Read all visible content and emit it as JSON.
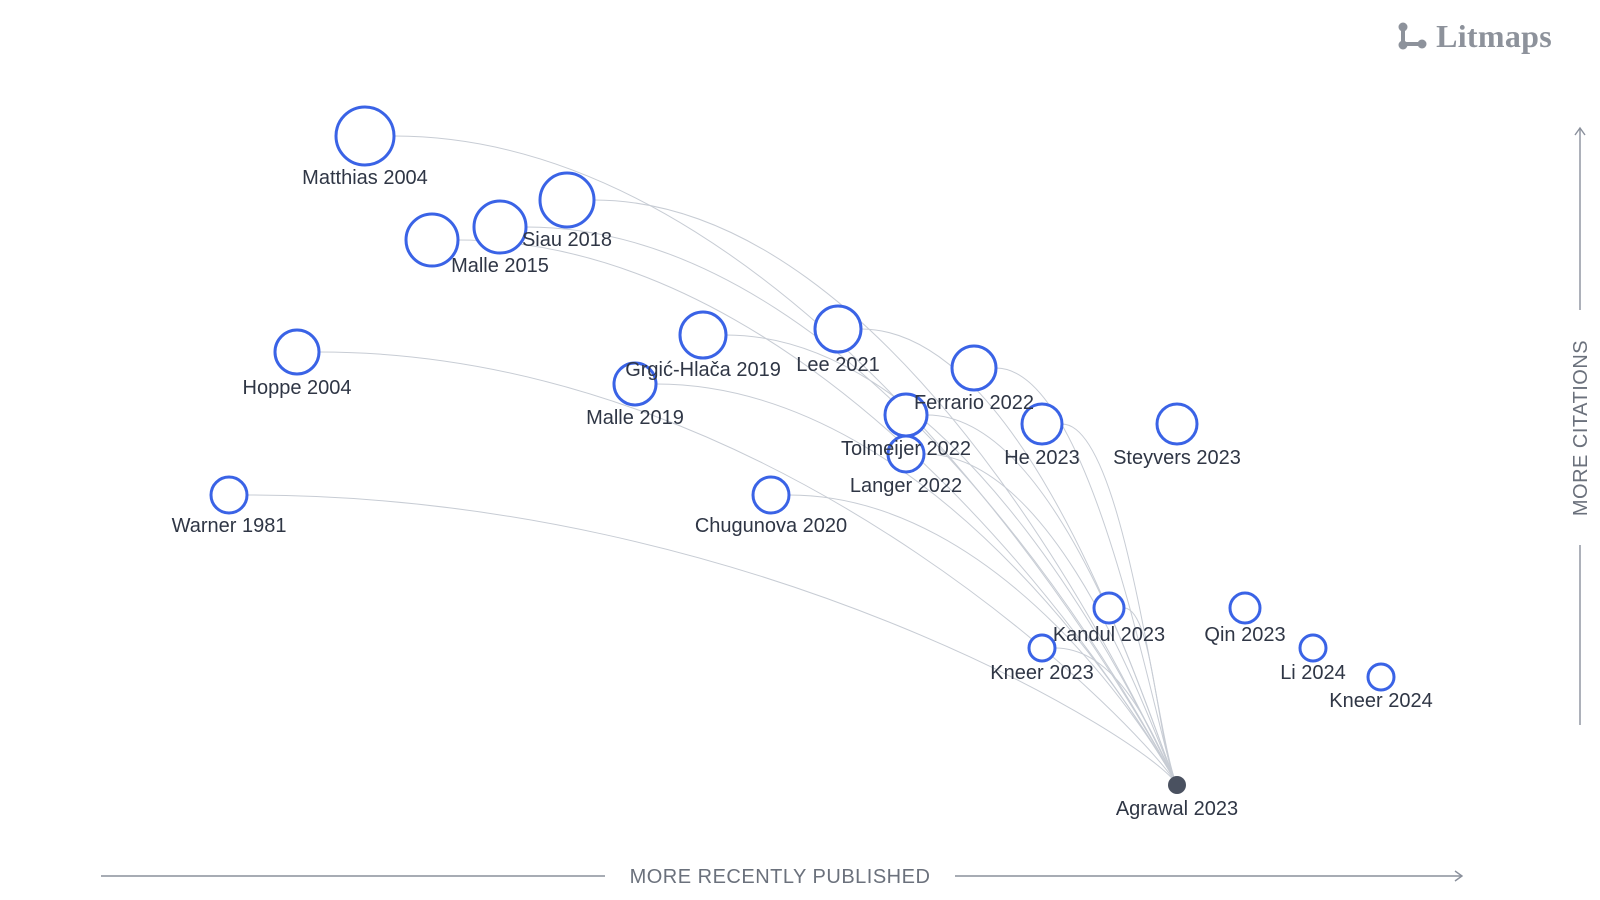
{
  "brand": {
    "name": "Litmaps",
    "icon": "litmaps-logo-icon"
  },
  "axes": {
    "x_label": "MORE RECENTLY PUBLISHED",
    "y_label": "MORE CITATIONS"
  },
  "colors": {
    "node_stroke": "#3a63e6",
    "edge": "#c7ccd4",
    "origin": "#4a5160",
    "axis": "#8a909c"
  },
  "papers": [
    {
      "id": "matthias-2004",
      "label": "Matthias 2004"
    },
    {
      "id": "siau-2018",
      "label": "Siau 2018"
    },
    {
      "id": "malle-2015",
      "label": "Malle 2015"
    },
    {
      "id": "unlabeled-2015",
      "label": ""
    },
    {
      "id": "hoppe-2004",
      "label": "Hoppe 2004"
    },
    {
      "id": "grgic-hlaca-2019",
      "label": "Grgić-Hlača 2019"
    },
    {
      "id": "lee-2021",
      "label": "Lee 2021"
    },
    {
      "id": "malle-2019",
      "label": "Malle 2019"
    },
    {
      "id": "ferrario-2022",
      "label": "Ferrario 2022"
    },
    {
      "id": "tolmeijer-2022",
      "label": "Tolmeijer 2022"
    },
    {
      "id": "he-2023",
      "label": "He 2023"
    },
    {
      "id": "steyvers-2023",
      "label": "Steyvers 2023"
    },
    {
      "id": "langer-2022",
      "label": "Langer 2022"
    },
    {
      "id": "warner-1981",
      "label": "Warner 1981"
    },
    {
      "id": "chugunova-2020",
      "label": "Chugunova 2020"
    },
    {
      "id": "kandul-2023",
      "label": "Kandul 2023"
    },
    {
      "id": "qin-2023",
      "label": "Qin 2023"
    },
    {
      "id": "kneer-2023",
      "label": "Kneer 2023"
    },
    {
      "id": "li-2024",
      "label": "Li 2024"
    },
    {
      "id": "kneer-2024",
      "label": "Kneer 2024"
    }
  ],
  "origin": {
    "id": "agrawal-2023",
    "label": "Agrawal 2023"
  }
}
